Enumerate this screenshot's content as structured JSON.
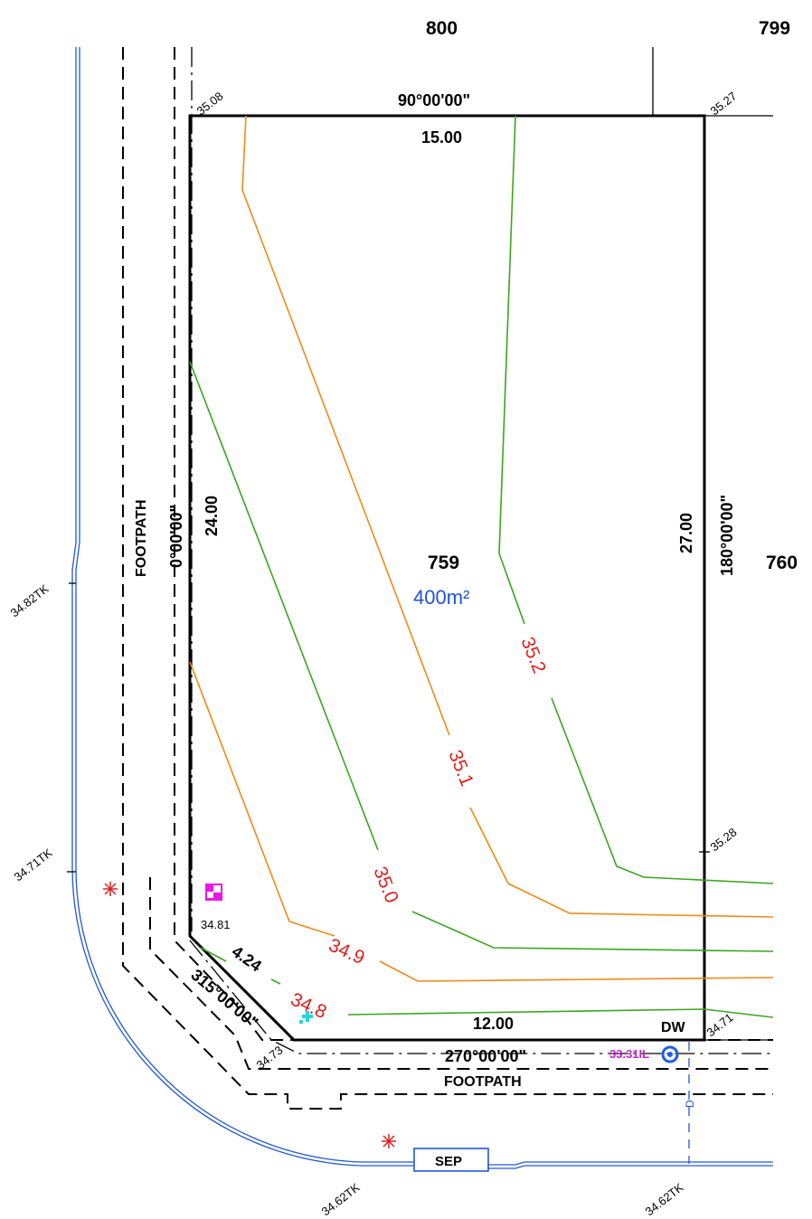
{
  "lots": {
    "north_left": "800",
    "north_right": "799",
    "subject": "759",
    "east": "760"
  },
  "subject_area": "400m²",
  "dimensions": {
    "north_bearing": "90°00'00\"",
    "north_length": "15.00",
    "west_bearing": "0°00'00\"",
    "west_length": "24.00",
    "east_bearing": "180°00'00\"",
    "east_length": "27.00",
    "south_bearing": "270°00'00\"",
    "south_length": "12.00",
    "corner_bearing": "315°00'00\"",
    "corner_length": "4.24"
  },
  "levels": {
    "nw": "35.08",
    "ne": "35.27",
    "e_mid": "35.28",
    "se": "34.71",
    "sw": "34.73",
    "w_corner": "34.81",
    "tk_west": "34.82TK",
    "tk_west_low": "34.71TK",
    "tk_south_left": "34.62TK",
    "tk_south_right": "34.62TK",
    "invert": "33.31IL"
  },
  "contours": {
    "c348": "34.8",
    "c349": "34.9",
    "c350": "35.0",
    "c351": "35.1",
    "c352": "35.2"
  },
  "labels": {
    "footpath_west": "FOOTPATH",
    "footpath_south": "FOOTPATH",
    "driveway": "DW",
    "sewer_pit": "SEP",
    "drain_marker": "D"
  },
  "colors": {
    "boundary": "#000000",
    "contour_orange": "#f08a16",
    "contour_green": "#3aa61e",
    "contour_label": "#e0201c",
    "kerb_blue": "#2257d6",
    "area_blue": "#2153d9",
    "invert_magenta": "#c425d0",
    "pit_magenta": "#ee16e8",
    "tap_cyan": "#21d6e6"
  }
}
